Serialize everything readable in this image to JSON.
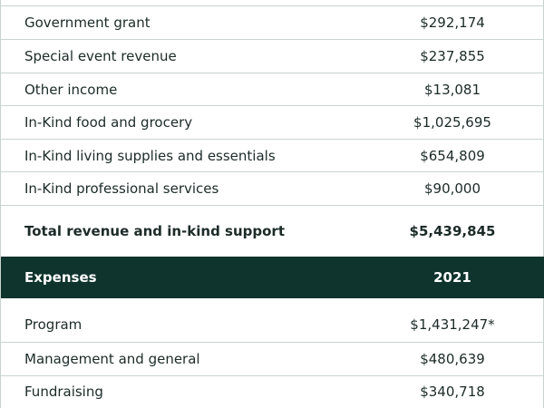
{
  "revenue_rows": [
    {
      "label": "Government grant",
      "value": "$292,174"
    },
    {
      "label": "Special event revenue",
      "value": "$237,855"
    },
    {
      "label": "Other income",
      "value": "$13,081"
    },
    {
      "label": "In-Kind food and grocery",
      "value": "$1,025,695"
    },
    {
      "label": "In-Kind living supplies and essentials",
      "value": "$654,809"
    },
    {
      "label": "In-Kind professional services",
      "value": "$90,000"
    }
  ],
  "total": {
    "label": "Total revenue and in-kind support",
    "value": "$5,439,845"
  },
  "expenses_header": {
    "label": "Expenses",
    "year": "2021"
  },
  "expense_rows": [
    {
      "label": "Program",
      "value": "$1,431,247*"
    },
    {
      "label": "Management and general",
      "value": "$480,639"
    },
    {
      "label": "Fundraising",
      "value": "$340,718"
    }
  ],
  "colors": {
    "header_bg": "#0f332d",
    "header_text": "#ffffff",
    "divider": "#c9d3cf",
    "text": "#1c2b28"
  }
}
